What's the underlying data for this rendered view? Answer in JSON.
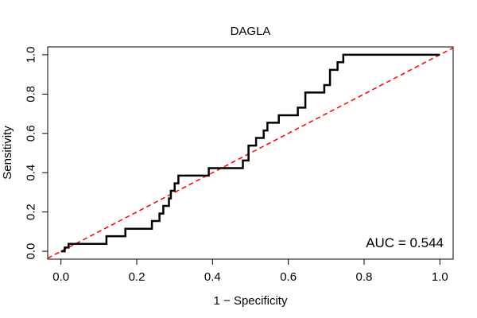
{
  "chart_data": {
    "type": "line",
    "title": "DAGLA",
    "xlabel": "1 − Specificity",
    "ylabel": "Sensitivity",
    "xlim": [
      -0.035,
      1.035
    ],
    "ylim": [
      -0.04,
      1.04
    ],
    "x_ticks": [
      0.0,
      0.2,
      0.4,
      0.6,
      0.8,
      1.0
    ],
    "x_tick_labels": [
      "0.0",
      "0.2",
      "0.4",
      "0.6",
      "0.8",
      "1.0"
    ],
    "y_ticks": [
      0.0,
      0.2,
      0.4,
      0.6,
      0.8,
      1.0
    ],
    "y_tick_labels": [
      "0.0",
      "0.2",
      "0.4",
      "0.6",
      "0.8",
      "1.0"
    ],
    "annotation": "AUC = 0.544",
    "grid": false,
    "colors": {
      "roc": "#000000",
      "reference": "#ff0000"
    },
    "series": [
      {
        "style": "step",
        "color": "#000000",
        "x": [
          0.0,
          0.01,
          0.01,
          0.02,
          0.02,
          0.12,
          0.12,
          0.17,
          0.17,
          0.24,
          0.24,
          0.26,
          0.26,
          0.27,
          0.27,
          0.285,
          0.285,
          0.29,
          0.29,
          0.3,
          0.3,
          0.31,
          0.31,
          0.39,
          0.39,
          0.48,
          0.48,
          0.495,
          0.495,
          0.515,
          0.515,
          0.535,
          0.535,
          0.545,
          0.545,
          0.575,
          0.575,
          0.625,
          0.625,
          0.645,
          0.645,
          0.695,
          0.695,
          0.71,
          0.71,
          0.73,
          0.73,
          0.745,
          0.745,
          0.755,
          0.755,
          1.0
        ],
        "y": [
          0.0,
          0.0,
          0.019,
          0.019,
          0.038,
          0.038,
          0.077,
          0.077,
          0.115,
          0.115,
          0.154,
          0.154,
          0.192,
          0.192,
          0.231,
          0.231,
          0.269,
          0.269,
          0.308,
          0.308,
          0.346,
          0.346,
          0.385,
          0.385,
          0.423,
          0.423,
          0.462,
          0.462,
          0.538,
          0.538,
          0.577,
          0.577,
          0.615,
          0.615,
          0.654,
          0.654,
          0.692,
          0.692,
          0.731,
          0.731,
          0.808,
          0.808,
          0.846,
          0.846,
          0.923,
          0.923,
          0.962,
          0.962,
          1.0,
          1.0,
          1.0,
          1.0
        ]
      },
      {
        "style": "dashed",
        "color": "#ff0000",
        "x": [
          -0.035,
          1.035
        ],
        "y": [
          -0.035,
          1.035
        ]
      }
    ]
  }
}
